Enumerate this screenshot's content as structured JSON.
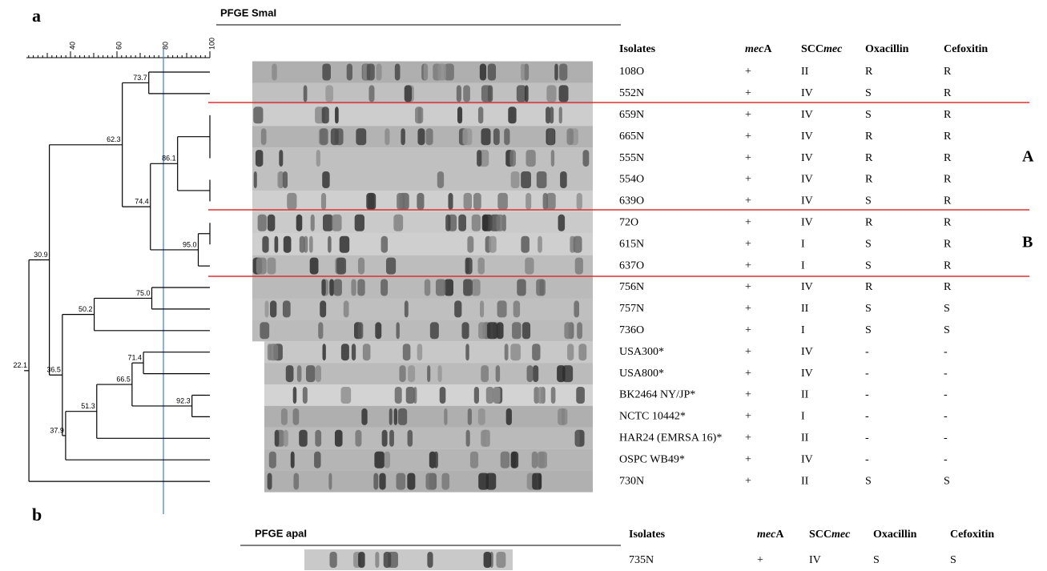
{
  "panel_a": {
    "letter": "a",
    "gel_title": "PFGE SmaI",
    "scale_ticks": [
      40,
      60,
      80,
      100
    ],
    "nodes": [
      "73.7",
      "62.3",
      "86.1",
      "74.4",
      "95.0",
      "30.9",
      "75.0",
      "50.2",
      "71.4",
      "66.5",
      "92.3",
      "51.3",
      "37.9",
      "36.5",
      "22.1"
    ],
    "headers": [
      "Isolates",
      [
        "mec",
        "A"
      ],
      [
        "SCC",
        "mec"
      ],
      "Oxacillin",
      "Cefoxitin"
    ],
    "rows": [
      [
        "108O",
        "+",
        "II",
        "R",
        "R"
      ],
      [
        "552N",
        "+",
        "IV",
        "S",
        "R"
      ],
      [
        "659N",
        "+",
        "IV",
        "S",
        "R"
      ],
      [
        "665N",
        "+",
        "IV",
        "R",
        "R"
      ],
      [
        "555N",
        "+",
        "IV",
        "R",
        "R"
      ],
      [
        "554O",
        "+",
        "IV",
        "R",
        "R"
      ],
      [
        "639O",
        "+",
        "IV",
        "S",
        "R"
      ],
      [
        "72O",
        "+",
        "IV",
        "R",
        "R"
      ],
      [
        "615N",
        "+",
        "I",
        "S",
        "R"
      ],
      [
        "637O",
        "+",
        "I",
        "S",
        "R"
      ],
      [
        "756N",
        "+",
        "IV",
        "R",
        "R"
      ],
      [
        "757N",
        "+",
        "II",
        "S",
        "S"
      ],
      [
        "736O",
        "+",
        "I",
        "S",
        "S"
      ],
      [
        "USA300*",
        "+",
        "IV",
        "-",
        "-"
      ],
      [
        "USA800*",
        "+",
        "IV",
        "-",
        "-"
      ],
      [
        "BK2464 NY/JP*",
        "+",
        "II",
        "-",
        "-"
      ],
      [
        "NCTC 10442*",
        "+",
        "I",
        "-",
        "-"
      ],
      [
        "HAR24 (EMRSA 16)*",
        "+",
        "II",
        "-",
        "-"
      ],
      [
        "OSPC WB49*",
        "+",
        "IV",
        "-",
        "-"
      ],
      [
        "730N",
        "+",
        "II",
        "S",
        "S"
      ]
    ],
    "groups": [
      "A",
      "B"
    ]
  },
  "panel_b": {
    "letter": "b",
    "gel_title": "PFGE apaI",
    "headers": [
      "Isolates",
      [
        "mec",
        "A"
      ],
      [
        "SCC",
        "mec"
      ],
      "Oxacillin",
      "Cefoxitin"
    ],
    "rows": [
      [
        "735N",
        "+",
        "IV",
        "S",
        "S"
      ]
    ]
  }
}
